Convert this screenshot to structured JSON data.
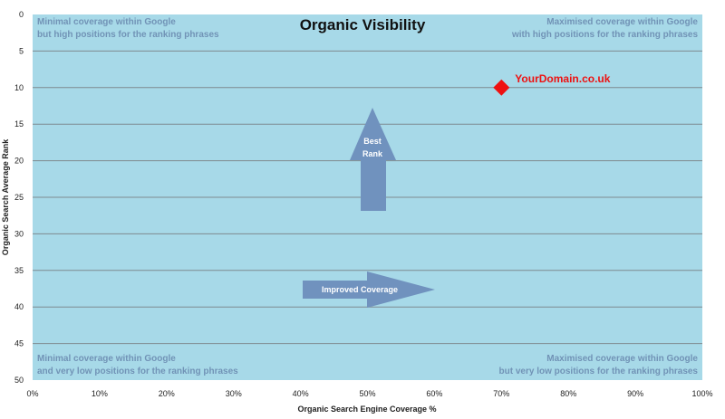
{
  "chart_data": {
    "type": "scatter",
    "title": "Organic Visibility",
    "xlabel": "Organic Search Engine Coverage %",
    "ylabel": "Organic Search Average Rank",
    "xlim": [
      0,
      100
    ],
    "ylim": [
      0,
      50
    ],
    "y_inverted": true,
    "x_ticks": [
      "0%",
      "10%",
      "20%",
      "30%",
      "40%",
      "50%",
      "60%",
      "70%",
      "80%",
      "90%",
      "100%"
    ],
    "y_ticks": [
      "0",
      "5",
      "10",
      "15",
      "20",
      "25",
      "30",
      "35",
      "40",
      "45",
      "50"
    ],
    "grid": "horizontal",
    "points": [
      {
        "label": "YourDomain.co.uk",
        "x": 70,
        "y": 10
      }
    ],
    "quadrant_labels": {
      "top_left": [
        "Minimal coverage within Google",
        "but high positions for the ranking phrases"
      ],
      "top_right": [
        "Maximised coverage within Google",
        "with high positions for the ranking phrases"
      ],
      "bottom_left": [
        "Minimal coverage within Google",
        "and very low positions for the ranking phrases"
      ],
      "bottom_right": [
        "Maximised coverage within Google",
        "but very low positions for the ranking phrases"
      ]
    },
    "arrows": {
      "up_label": [
        "Best",
        "Rank"
      ],
      "right_label": "Improved Coverage"
    },
    "colors": {
      "plot_background": "#a7d9e8",
      "gridline": "#7f8a8f",
      "quadrant_text": "#7193b6",
      "arrow_fill": "#7092be",
      "point": "#ee1111"
    }
  }
}
